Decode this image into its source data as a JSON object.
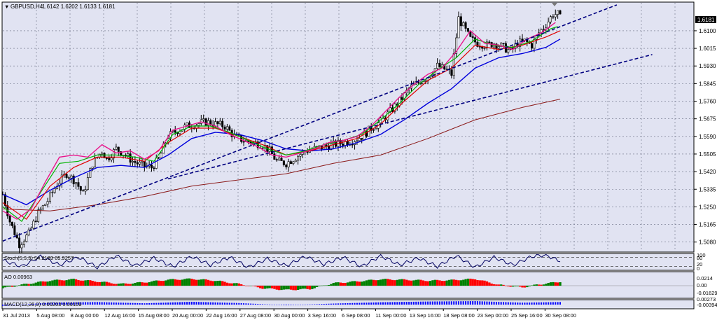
{
  "window": {
    "symbol_header": "GBPUSD,H4",
    "ohlc": "1.6142 1.6202 1.6133 1.6181"
  },
  "price_axis": {
    "current_price": "1.6181",
    "ticks": [
      "1.6100",
      "1.6015",
      "1.5930",
      "1.5845",
      "1.5760",
      "1.5675",
      "1.5590",
      "1.5505",
      "1.5420",
      "1.5335",
      "1.5250",
      "1.5165",
      "1.5080"
    ]
  },
  "time_axis": {
    "labels": [
      "31 Jul 2013",
      "5 Aug 08:00",
      "8 Aug 00:00",
      "12 Aug 16:00",
      "15 Aug 08:00",
      "20 Aug 00:00",
      "22 Aug 16:00",
      "27 Aug 08:00",
      "30 Aug 00:00",
      "3 Sep 16:00",
      "6 Sep 08:00",
      "11 Sep 00:00",
      "13 Sep 16:00",
      "18 Sep 08:00",
      "23 Sep 00:00",
      "25 Sep 16:00",
      "30 Sep 08:00"
    ]
  },
  "stoch": {
    "label": "Stoch(5,3,3) 54.2189 65.9257",
    "ticks": [
      "100",
      "80",
      "20",
      "0"
    ]
  },
  "ao": {
    "label": "AO 0.00963",
    "ticks": [
      "0.0214",
      "0.00",
      "-0.01629"
    ]
  },
  "macd": {
    "label": "MACD(12,26,9) 0.00203 0.00159",
    "ticks": [
      "0.00273",
      "-0.00394"
    ]
  },
  "colors": {
    "background": "#ffffff",
    "chart_bg": "#e1e3f2",
    "candle": "#000000",
    "ma_fast": "#e9148a",
    "ma_mid": "#00b400",
    "ma_slow": "#e00000",
    "ma_long": "#0000dc",
    "ma_200": "#8b1a1a",
    "trendline": "#000080",
    "ao_up": "#008000",
    "ao_down": "#ff0000",
    "macd_hist": "#000000",
    "macd_signal": "#0000ff"
  },
  "chart_data": {
    "type": "candlestick",
    "symbol": "GBPUSD",
    "timeframe": "H4",
    "last": {
      "open": 1.6142,
      "high": 1.6202,
      "low": 1.6133,
      "close": 1.6181
    },
    "ylim": [
      1.5035,
      1.6235
    ],
    "price_path": [
      [
        0,
        1.531
      ],
      [
        3,
        1.518
      ],
      [
        7,
        1.507
      ],
      [
        11,
        1.512
      ],
      [
        15,
        1.522
      ],
      [
        19,
        1.528
      ],
      [
        23,
        1.536
      ],
      [
        27,
        1.541
      ],
      [
        31,
        1.537
      ],
      [
        34,
        1.531
      ],
      [
        38,
        1.546
      ],
      [
        42,
        1.552
      ],
      [
        44,
        1.548
      ],
      [
        48,
        1.553
      ],
      [
        52,
        1.55
      ],
      [
        55,
        1.547
      ],
      [
        59,
        1.545
      ],
      [
        63,
        1.544
      ],
      [
        66,
        1.548
      ],
      [
        70,
        1.559
      ],
      [
        74,
        1.562
      ],
      [
        78,
        1.564
      ],
      [
        82,
        1.565
      ],
      [
        86,
        1.566
      ],
      [
        90,
        1.565
      ],
      [
        94,
        1.564
      ],
      [
        98,
        1.559
      ],
      [
        102,
        1.557
      ],
      [
        106,
        1.556
      ],
      [
        110,
        1.555
      ],
      [
        113,
        1.552
      ],
      [
        116,
        1.547
      ],
      [
        120,
        1.546
      ],
      [
        124,
        1.549
      ],
      [
        128,
        1.552
      ],
      [
        132,
        1.553
      ],
      [
        136,
        1.554
      ],
      [
        140,
        1.555
      ],
      [
        144,
        1.556
      ],
      [
        148,
        1.557
      ],
      [
        152,
        1.559
      ],
      [
        156,
        1.563
      ],
      [
        160,
        1.566
      ],
      [
        164,
        1.571
      ],
      [
        168,
        1.576
      ],
      [
        172,
        1.582
      ],
      [
        176,
        1.585
      ],
      [
        180,
        1.588
      ],
      [
        184,
        1.593
      ],
      [
        188,
        1.591
      ],
      [
        190,
        1.589
      ],
      [
        193,
        1.616
      ],
      [
        195,
        1.612
      ],
      [
        198,
        1.606
      ],
      [
        201,
        1.604
      ],
      [
        205,
        1.603
      ],
      [
        208,
        1.604
      ],
      [
        212,
        1.602
      ],
      [
        215,
        1.6
      ],
      [
        218,
        1.604
      ],
      [
        221,
        1.605
      ],
      [
        224,
        1.603
      ],
      [
        227,
        1.609
      ],
      [
        230,
        1.613
      ],
      [
        233,
        1.618
      ]
    ],
    "ma_fast": [
      [
        0,
        1.523
      ],
      [
        6,
        1.519
      ],
      [
        12,
        1.524
      ],
      [
        18,
        1.537
      ],
      [
        24,
        1.549
      ],
      [
        30,
        1.55
      ],
      [
        36,
        1.549
      ],
      [
        42,
        1.555
      ],
      [
        48,
        1.551
      ],
      [
        54,
        1.552
      ],
      [
        60,
        1.548
      ],
      [
        66,
        1.552
      ],
      [
        72,
        1.562
      ],
      [
        78,
        1.564
      ],
      [
        84,
        1.566
      ],
      [
        90,
        1.564
      ],
      [
        96,
        1.56
      ],
      [
        102,
        1.557
      ],
      [
        108,
        1.554
      ],
      [
        114,
        1.55
      ],
      [
        120,
        1.549
      ],
      [
        126,
        1.551
      ],
      [
        132,
        1.553
      ],
      [
        138,
        1.556
      ],
      [
        144,
        1.557
      ],
      [
        150,
        1.559
      ],
      [
        156,
        1.564
      ],
      [
        162,
        1.571
      ],
      [
        168,
        1.578
      ],
      [
        174,
        1.584
      ],
      [
        180,
        1.589
      ],
      [
        186,
        1.592
      ],
      [
        192,
        1.6
      ],
      [
        198,
        1.61
      ],
      [
        204,
        1.604
      ],
      [
        210,
        1.603
      ],
      [
        216,
        1.601
      ],
      [
        222,
        1.606
      ],
      [
        228,
        1.609
      ],
      [
        234,
        1.614
      ]
    ],
    "ma_mid": [
      [
        0,
        1.525
      ],
      [
        8,
        1.518
      ],
      [
        16,
        1.532
      ],
      [
        24,
        1.546
      ],
      [
        32,
        1.547
      ],
      [
        40,
        1.55
      ],
      [
        48,
        1.55
      ],
      [
        56,
        1.549
      ],
      [
        64,
        1.547
      ],
      [
        72,
        1.56
      ],
      [
        80,
        1.564
      ],
      [
        88,
        1.564
      ],
      [
        96,
        1.561
      ],
      [
        104,
        1.557
      ],
      [
        112,
        1.553
      ],
      [
        120,
        1.55
      ],
      [
        128,
        1.552
      ],
      [
        136,
        1.555
      ],
      [
        144,
        1.557
      ],
      [
        152,
        1.56
      ],
      [
        160,
        1.567
      ],
      [
        168,
        1.575
      ],
      [
        176,
        1.584
      ],
      [
        184,
        1.591
      ],
      [
        192,
        1.597
      ],
      [
        200,
        1.606
      ],
      [
        208,
        1.603
      ],
      [
        216,
        1.602
      ],
      [
        224,
        1.605
      ],
      [
        232,
        1.611
      ],
      [
        235,
        1.612
      ]
    ],
    "ma_slow": [
      [
        0,
        1.527
      ],
      [
        10,
        1.519
      ],
      [
        20,
        1.535
      ],
      [
        30,
        1.544
      ],
      [
        40,
        1.549
      ],
      [
        50,
        1.549
      ],
      [
        60,
        1.547
      ],
      [
        70,
        1.556
      ],
      [
        80,
        1.563
      ],
      [
        90,
        1.563
      ],
      [
        100,
        1.559
      ],
      [
        110,
        1.555
      ],
      [
        120,
        1.55
      ],
      [
        130,
        1.552
      ],
      [
        140,
        1.555
      ],
      [
        150,
        1.558
      ],
      [
        160,
        1.565
      ],
      [
        170,
        1.576
      ],
      [
        180,
        1.586
      ],
      [
        190,
        1.592
      ],
      [
        200,
        1.603
      ],
      [
        210,
        1.601
      ],
      [
        220,
        1.603
      ],
      [
        230,
        1.607
      ],
      [
        236,
        1.61
      ]
    ],
    "ma_long": [
      [
        0,
        1.531
      ],
      [
        10,
        1.526
      ],
      [
        20,
        1.533
      ],
      [
        30,
        1.539
      ],
      [
        40,
        1.544
      ],
      [
        50,
        1.545
      ],
      [
        60,
        1.544
      ],
      [
        70,
        1.55
      ],
      [
        80,
        1.558
      ],
      [
        90,
        1.561
      ],
      [
        100,
        1.56
      ],
      [
        110,
        1.557
      ],
      [
        120,
        1.553
      ],
      [
        130,
        1.552
      ],
      [
        140,
        1.553
      ],
      [
        150,
        1.556
      ],
      [
        160,
        1.56
      ],
      [
        170,
        1.567
      ],
      [
        180,
        1.575
      ],
      [
        190,
        1.582
      ],
      [
        200,
        1.592
      ],
      [
        210,
        1.597
      ],
      [
        220,
        1.599
      ],
      [
        230,
        1.602
      ],
      [
        236,
        1.606
      ]
    ],
    "ma_200": [
      [
        0,
        1.524
      ],
      [
        20,
        1.523
      ],
      [
        40,
        1.526
      ],
      [
        60,
        1.53
      ],
      [
        80,
        1.535
      ],
      [
        100,
        1.538
      ],
      [
        120,
        1.541
      ],
      [
        140,
        1.546
      ],
      [
        160,
        1.55
      ],
      [
        180,
        1.558
      ],
      [
        200,
        1.567
      ],
      [
        220,
        1.573
      ],
      [
        236,
        1.577
      ]
    ],
    "trendlines": [
      {
        "from": [
          0,
          1.5085
        ],
        "to": [
          260,
          1.6225
        ]
      },
      {
        "from": [
          70,
          1.5385
        ],
        "to": [
          275,
          1.5985
        ]
      }
    ],
    "stoch_k": [
      [
        0,
        60
      ],
      [
        8,
        20
      ],
      [
        16,
        85
      ],
      [
        24,
        30
      ],
      [
        32,
        80
      ],
      [
        40,
        15
      ],
      [
        48,
        90
      ],
      [
        56,
        25
      ],
      [
        64,
        75
      ],
      [
        72,
        20
      ],
      [
        80,
        85
      ],
      [
        88,
        30
      ],
      [
        96,
        80
      ],
      [
        104,
        15
      ],
      [
        112,
        70
      ],
      [
        120,
        25
      ],
      [
        128,
        85
      ],
      [
        136,
        35
      ],
      [
        144,
        80
      ],
      [
        152,
        20
      ],
      [
        160,
        90
      ],
      [
        168,
        30
      ],
      [
        176,
        75
      ],
      [
        184,
        20
      ],
      [
        192,
        90
      ],
      [
        200,
        15
      ],
      [
        208,
        80
      ],
      [
        216,
        30
      ],
      [
        224,
        85
      ],
      [
        230,
        95
      ],
      [
        235,
        60
      ]
    ],
    "ao_values": [
      [
        0,
        -0.006
      ],
      [
        10,
        0.004
      ],
      [
        20,
        0.012
      ],
      [
        30,
        0.015
      ],
      [
        40,
        0.01
      ],
      [
        50,
        0.004
      ],
      [
        60,
        0.008
      ],
      [
        70,
        0.014
      ],
      [
        80,
        0.016
      ],
      [
        90,
        0.012
      ],
      [
        100,
        0.004
      ],
      [
        110,
        -0.006
      ],
      [
        120,
        -0.01
      ],
      [
        130,
        -0.008
      ],
      [
        140,
        0.006
      ],
      [
        150,
        0.01
      ],
      [
        160,
        0.015
      ],
      [
        170,
        0.014
      ],
      [
        180,
        0.012
      ],
      [
        190,
        0.013
      ],
      [
        200,
        0.016
      ],
      [
        210,
        0.002
      ],
      [
        220,
        -0.004
      ],
      [
        226,
        0.002
      ],
      [
        236,
        0.0096
      ]
    ],
    "macd_values": [
      [
        0,
        -0.001
      ],
      [
        20,
        0.0015
      ],
      [
        40,
        0.002
      ],
      [
        60,
        0.001
      ],
      [
        80,
        0.0022
      ],
      [
        100,
        0.0012
      ],
      [
        120,
        -0.0005
      ],
      [
        140,
        0.0008
      ],
      [
        160,
        0.0018
      ],
      [
        180,
        0.0024
      ],
      [
        200,
        0.0027
      ],
      [
        220,
        0.0015
      ],
      [
        236,
        0.002
      ]
    ]
  }
}
